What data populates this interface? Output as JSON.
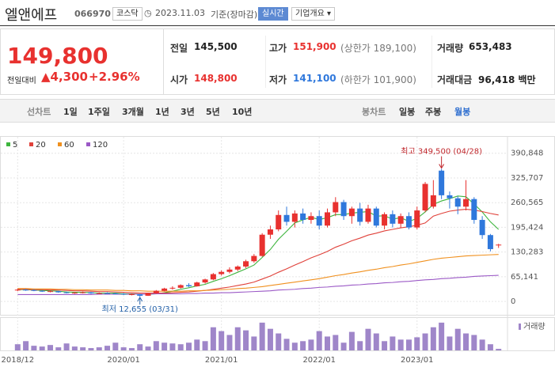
{
  "header": {
    "name": "엘앤에프",
    "code": "066970",
    "market": "코스닥",
    "date": "2023.11.03",
    "basis": "기준(장마감)",
    "realtime": "실시간",
    "company": "기업개요"
  },
  "quote": {
    "price": "149,800",
    "change_label": "전일대비",
    "change": "4,300",
    "change_pct": "+2.96%"
  },
  "stats": [
    [
      {
        "label": "전일",
        "value": "145,500"
      },
      {
        "label": "고가",
        "value": "151,900",
        "extra": "(상한가 189,100)"
      },
      {
        "label": "거래량",
        "value": "653,483"
      }
    ],
    [
      {
        "label": "시가",
        "value": "148,800"
      },
      {
        "label": "저가",
        "value": "141,100",
        "extra": "(하한가 101,900)"
      },
      {
        "label": "거래대금",
        "value": "96,418 백만"
      }
    ]
  ],
  "tabs": {
    "line": [
      "선차트",
      "1일",
      "1주일",
      "3개월",
      "1년",
      "3년",
      "5년",
      "10년"
    ],
    "candle": [
      "봉차트",
      "일봉",
      "주봉",
      "월봉"
    ],
    "selected": "월봉"
  },
  "chart_data": {
    "type": "candlestick",
    "ma": [
      {
        "name": "5",
        "color": "#3eb53e",
        "values": [
          31000,
          31000,
          30000,
          29000,
          28000,
          27000,
          25000,
          24000,
          24000,
          23000,
          22000,
          22000,
          22000,
          20000,
          20000,
          19000,
          19000,
          20000,
          23000,
          27000,
          32000,
          36000,
          41000,
          45000,
          53000,
          60000,
          68000,
          77000,
          86000,
          96000,
          116000,
          137000,
          164000,
          185000,
          207000,
          215000,
          222000,
          216000,
          221000,
          229000,
          229000,
          233000,
          235000,
          237000,
          225000,
          226000,
          217000,
          221000,
          211000,
          219000,
          236000,
          256000,
          265000,
          271000,
          278000,
          276000,
          257000,
          236000,
          210000,
          190000
        ]
      },
      {
        "name": "20",
        "color": "#e0413a",
        "values": [
          32000,
          32000,
          31000,
          31000,
          30000,
          30000,
          29000,
          28000,
          28000,
          27000,
          26000,
          26000,
          25000,
          24000,
          23000,
          22000,
          22000,
          22000,
          22000,
          23000,
          24000,
          25000,
          27000,
          29000,
          32000,
          35000,
          38000,
          42000,
          46000,
          51000,
          59000,
          67000,
          77000,
          86000,
          96000,
          105000,
          115000,
          123000,
          132000,
          143000,
          151000,
          160000,
          167000,
          175000,
          180000,
          186000,
          190000,
          194000,
          197000,
          201000,
          207000,
          225000,
          232000,
          238000,
          241000,
          243000,
          241000,
          237000,
          232000,
          228000
        ]
      },
      {
        "name": "60",
        "color": "#f0901e",
        "values": [
          34000,
          34000,
          33000,
          33000,
          33000,
          32000,
          32000,
          31000,
          31000,
          30000,
          30000,
          30000,
          29000,
          29000,
          28000,
          28000,
          27000,
          27000,
          27000,
          27000,
          27000,
          28000,
          28000,
          29000,
          30000,
          31000,
          32000,
          34000,
          35000,
          37000,
          39000,
          42000,
          45000,
          48000,
          51000,
          54000,
          57000,
          60000,
          64000,
          68000,
          71000,
          75000,
          78000,
          82000,
          85000,
          89000,
          92000,
          96000,
          99000,
          103000,
          107000,
          111000,
          114000,
          116000,
          118000,
          120000,
          121000,
          122000,
          123000,
          124000
        ]
      },
      {
        "name": "120",
        "color": "#9b59c6",
        "values": [
          18000,
          18000,
          18000,
          18000,
          18000,
          18000,
          18000,
          18000,
          18000,
          18000,
          19000,
          19000,
          19000,
          19000,
          19000,
          19000,
          19000,
          20000,
          20000,
          20000,
          20000,
          21000,
          21000,
          22000,
          22000,
          23000,
          23000,
          24000,
          25000,
          26000,
          27000,
          28000,
          30000,
          31000,
          32000,
          34000,
          35000,
          37000,
          38000,
          40000,
          41000,
          43000,
          44000,
          46000,
          47000,
          49000,
          50000,
          52000,
          53000,
          55000,
          57000,
          58000,
          60000,
          61000,
          63000,
          64000,
          66000,
          67000,
          68000,
          69000
        ]
      }
    ],
    "open": [
      30000,
      31000,
      30000,
      28000,
      26000,
      27000,
      24000,
      22000,
      23000,
      24000,
      21000,
      22000,
      21000,
      20000,
      18000,
      19000,
      15000,
      21000,
      28000,
      34000,
      36000,
      43000,
      40000,
      50000,
      58000,
      72000,
      78000,
      84000,
      92000,
      106000,
      120000,
      176000,
      190000,
      228000,
      210000,
      232000,
      215000,
      225000,
      200000,
      235000,
      262000,
      225000,
      245000,
      210000,
      245000,
      200000,
      230000,
      205000,
      225000,
      195000,
      240000,
      250000,
      345000,
      280000,
      272000,
      250000,
      270000,
      215000,
      175000,
      148800
    ],
    "high": [
      34000,
      33000,
      32000,
      30000,
      29000,
      28000,
      26000,
      25000,
      26000,
      25000,
      24000,
      24000,
      23000,
      22000,
      21000,
      20000,
      22000,
      30000,
      36000,
      40000,
      45000,
      48000,
      52000,
      60000,
      75000,
      82000,
      90000,
      95000,
      110000,
      125000,
      180000,
      200000,
      240000,
      250000,
      240000,
      245000,
      235000,
      240000,
      245000,
      275000,
      268000,
      250000,
      260000,
      255000,
      250000,
      235000,
      240000,
      232000,
      235000,
      250000,
      315000,
      320000,
      349500,
      290000,
      278000,
      320000,
      275000,
      225000,
      178000,
      151900
    ],
    "low": [
      27000,
      28000,
      27000,
      25000,
      24000,
      23000,
      21000,
      20000,
      21000,
      20000,
      19000,
      20000,
      19000,
      17000,
      16000,
      12655,
      14500,
      20000,
      26000,
      31000,
      34000,
      38000,
      39000,
      47000,
      56000,
      68000,
      74000,
      80000,
      88000,
      102000,
      118000,
      165000,
      185000,
      200000,
      195000,
      205000,
      205000,
      190000,
      195000,
      225000,
      215000,
      205000,
      200000,
      205000,
      195000,
      190000,
      195000,
      195000,
      190000,
      190000,
      235000,
      245000,
      270000,
      245000,
      230000,
      240000,
      205000,
      165000,
      132000,
      141100
    ],
    "close": [
      31000,
      30000,
      28000,
      26000,
      27000,
      24000,
      22000,
      23000,
      24000,
      21000,
      22000,
      21000,
      20000,
      18000,
      19000,
      15000,
      21000,
      28000,
      34000,
      36000,
      43000,
      40000,
      50000,
      58000,
      72000,
      78000,
      84000,
      92000,
      106000,
      120000,
      176000,
      190000,
      228000,
      210000,
      232000,
      215000,
      225000,
      200000,
      235000,
      262000,
      225000,
      245000,
      210000,
      245000,
      200000,
      230000,
      205000,
      225000,
      195000,
      240000,
      310000,
      280000,
      280000,
      272000,
      250000,
      270000,
      215000,
      175000,
      138000,
      149800
    ],
    "volume": [
      8,
      12,
      6,
      5,
      7,
      4,
      9,
      5,
      4,
      3,
      4,
      6,
      10,
      4,
      3,
      8,
      5,
      12,
      10,
      9,
      8,
      10,
      14,
      12,
      30,
      25,
      20,
      30,
      26,
      18,
      36,
      28,
      22,
      15,
      10,
      12,
      14,
      25,
      18,
      20,
      10,
      24,
      12,
      28,
      22,
      12,
      18,
      14,
      14,
      17,
      22,
      30,
      36,
      18,
      28,
      22,
      20,
      14,
      8,
      2
    ],
    "volume_ylim": [
      0,
      40
    ],
    "volume_label": "거래량",
    "up_color": "#e8312f",
    "down_color": "#2f78dc",
    "volume_color": "#9f86c9",
    "ylim": [
      -29000,
      407000
    ],
    "yticks": [
      0,
      {
        "value": 65141,
        "label": "65,141"
      },
      {
        "value": 130283,
        "label": "130,283"
      },
      {
        "value": 195424,
        "label": "195,424"
      },
      {
        "value": 260565,
        "label": "260,565"
      },
      {
        "value": 325707,
        "label": "325,707"
      },
      {
        "value": 390848,
        "label": "390,848"
      }
    ],
    "xticks": [
      {
        "value": 0,
        "label": "2018/12"
      },
      {
        "value": 13,
        "label": "2020/01"
      },
      {
        "value": 25,
        "label": "2021/01"
      },
      {
        "value": 37,
        "label": "2022/01"
      },
      {
        "value": 49,
        "label": "2023/01"
      }
    ],
    "xlim": [
      -1,
      60
    ],
    "grid": true,
    "annotations": [
      {
        "text": "최고 349,500 (04/28)",
        "index": 52,
        "value": 349500,
        "color": "#c0282d"
      },
      {
        "text": "최저 12,655 (03/31)",
        "index": 15,
        "value": 12655,
        "color": "#2461a8"
      }
    ]
  }
}
